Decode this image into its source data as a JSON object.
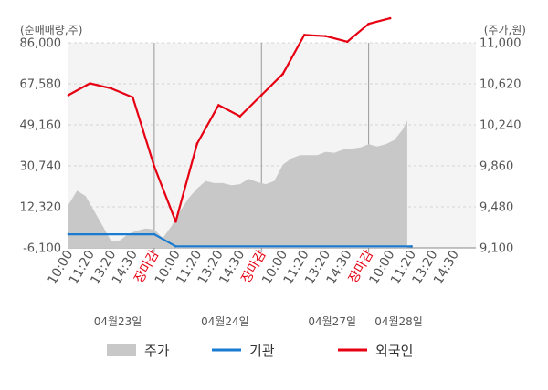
{
  "chart_data": {
    "type": "line",
    "left_axis_unit": "(순매매량,주)",
    "right_axis_unit": "(주가,원)",
    "left_ticks": [
      "86,000",
      "67,580",
      "49,160",
      "30,740",
      "12,320",
      "-6,100"
    ],
    "right_ticks": [
      "11,000",
      "10,620",
      "10,240",
      "9,860",
      "9,480",
      "9,100"
    ],
    "ylim_left": [
      -6100,
      86000
    ],
    "ylim_right": [
      9100,
      11000
    ],
    "x_tick_labels": [
      {
        "label": "10:00",
        "close": false
      },
      {
        "label": "11:20",
        "close": false
      },
      {
        "label": "13:20",
        "close": false
      },
      {
        "label": "14:30",
        "close": false
      },
      {
        "label": "장마감",
        "close": true
      },
      {
        "label": "10:00",
        "close": false
      },
      {
        "label": "11:20",
        "close": false
      },
      {
        "label": "13:20",
        "close": false
      },
      {
        "label": "14:30",
        "close": false
      },
      {
        "label": "장마감",
        "close": true
      },
      {
        "label": "10:00",
        "close": false
      },
      {
        "label": "11:20",
        "close": false
      },
      {
        "label": "13:20",
        "close": false
      },
      {
        "label": "14:30",
        "close": false
      },
      {
        "label": "장마감",
        "close": true
      },
      {
        "label": "10:00",
        "close": false
      },
      {
        "label": "11:20",
        "close": false
      },
      {
        "label": "13:20",
        "close": false
      },
      {
        "label": "14:30",
        "close": false
      }
    ],
    "dates": [
      "04월23일",
      "04월24일",
      "04월27일",
      "04월28일"
    ],
    "legend": [
      {
        "name": "주가",
        "color": "#c8c8c8",
        "kind": "area"
      },
      {
        "name": "기관",
        "color": "#1a7bd1",
        "kind": "line"
      },
      {
        "name": "외국인",
        "color": "#e60012",
        "kind": "line"
      }
    ],
    "series": [
      {
        "name": "외국인",
        "axis": "left",
        "color": "#e60012",
        "x": [
          0,
          1,
          2,
          3,
          4,
          5,
          6,
          7,
          8,
          9,
          10,
          11,
          12,
          13,
          14,
          15,
          16
        ],
        "values": [
          62500,
          67800,
          65500,
          61500,
          30500,
          5700,
          40700,
          58000,
          53000,
          62500,
          72000,
          89500,
          89000,
          86500,
          94500,
          97000,
          null
        ]
      },
      {
        "name": "기관",
        "axis": "left",
        "color": "#1a7bd1",
        "x": [
          0,
          4,
          5,
          16
        ],
        "values": [
          0,
          0,
          -5400,
          -5400
        ]
      },
      {
        "name": "주가",
        "axis": "right",
        "color": "#c8c8c8",
        "x": [
          0,
          0.4,
          0.8,
          1.2,
          1.6,
          2.0,
          2.4,
          2.8,
          3.2,
          3.6,
          4.0,
          4.4,
          4.8,
          5.2,
          5.6,
          6.0,
          6.4,
          6.8,
          7.2,
          7.6,
          8.0,
          8.4,
          8.8,
          9.2,
          9.6,
          10.0,
          10.4,
          10.8,
          11.2,
          11.6,
          12.0,
          12.4,
          12.8,
          13.2,
          13.6,
          14.0,
          14.4,
          14.8,
          15.2,
          15.6,
          15.8
        ],
        "values": [
          9500,
          9630,
          9580,
          9440,
          9300,
          9160,
          9170,
          9230,
          9260,
          9280,
          9270,
          9190,
          9300,
          9440,
          9560,
          9650,
          9720,
          9700,
          9700,
          9680,
          9690,
          9740,
          9710,
          9690,
          9720,
          9870,
          9930,
          9960,
          9960,
          9960,
          9990,
          9980,
          10010,
          10020,
          10030,
          10060,
          10040,
          10060,
          10100,
          10200,
          10280
        ]
      }
    ]
  }
}
